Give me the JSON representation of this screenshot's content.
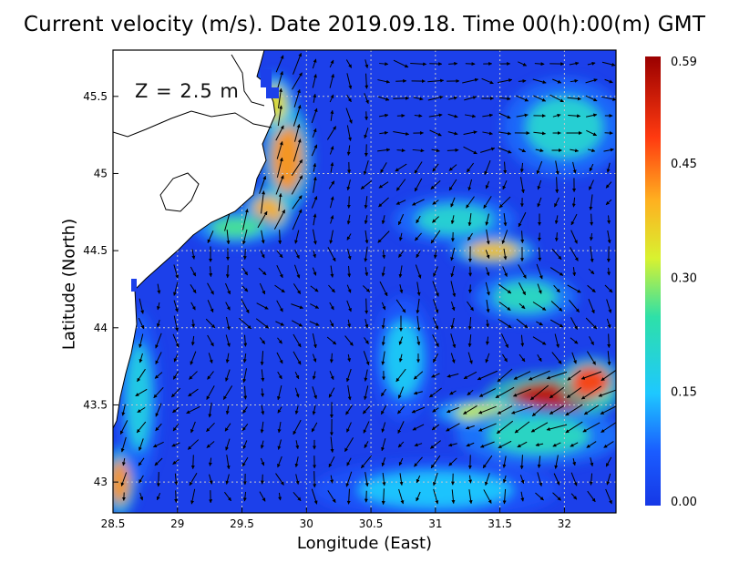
{
  "title": "Current velocity (m/s). Date 2019.09.18. Time 00(h):00(m) GMT",
  "depth_label": "Z = 2.5 m",
  "colors": {
    "low": "#1a3fe8",
    "mid": "#1ec8ff",
    "high": "#a00000",
    "land": "#ffffff",
    "coast": "#000000",
    "arrow": "#000000"
  },
  "chart_data": {
    "type": "heatmap",
    "title": "Current velocity (m/s). Date 2019.09.18. Time 00(h):00(m) GMT",
    "xlabel": "Longitude (East)",
    "ylabel": "Latitude (North)",
    "xlim": [
      28.5,
      32.4
    ],
    "ylim": [
      42.8,
      45.8
    ],
    "xticks": [
      {
        "value": 28.5,
        "label": "28.5"
      },
      {
        "value": 29,
        "label": "29"
      },
      {
        "value": 29.5,
        "label": "29.5"
      },
      {
        "value": 30,
        "label": "30"
      },
      {
        "value": 30.5,
        "label": "30.5"
      },
      {
        "value": 31,
        "label": "31"
      },
      {
        "value": 31.5,
        "label": "31.5"
      },
      {
        "value": 32,
        "label": "32"
      }
    ],
    "yticks": [
      {
        "value": 43,
        "label": "43"
      },
      {
        "value": 43.5,
        "label": "43.5"
      },
      {
        "value": 44,
        "label": "44"
      },
      {
        "value": 44.5,
        "label": "44.5"
      },
      {
        "value": 45,
        "label": "45"
      },
      {
        "value": 45.5,
        "label": "45.5"
      }
    ],
    "grid": true,
    "colorbar": {
      "min": 0.0,
      "max": 0.59,
      "ticks": [
        {
          "value": 0.0,
          "label": "0.00"
        },
        {
          "value": 0.15,
          "label": "0.15"
        },
        {
          "value": 0.3,
          "label": "0.30"
        },
        {
          "value": 0.45,
          "label": "0.45"
        },
        {
          "value": 0.59,
          "label": "0.59"
        }
      ]
    },
    "background_speed": 0.06,
    "hotspots": [
      {
        "lon": 29.85,
        "lat": 45.1,
        "speed": 0.42,
        "rx": 0.12,
        "ry": 0.22
      },
      {
        "lon": 29.7,
        "lat": 44.75,
        "speed": 0.4,
        "rx": 0.12,
        "ry": 0.1
      },
      {
        "lon": 29.75,
        "lat": 45.45,
        "speed": 0.35,
        "rx": 0.1,
        "ry": 0.12
      },
      {
        "lon": 29.45,
        "lat": 44.65,
        "speed": 0.26,
        "rx": 0.2,
        "ry": 0.07
      },
      {
        "lon": 31.45,
        "lat": 44.5,
        "speed": 0.38,
        "rx": 0.2,
        "ry": 0.06
      },
      {
        "lon": 31.15,
        "lat": 44.7,
        "speed": 0.2,
        "rx": 0.3,
        "ry": 0.1
      },
      {
        "lon": 31.7,
        "lat": 44.2,
        "speed": 0.22,
        "rx": 0.25,
        "ry": 0.1
      },
      {
        "lon": 31.9,
        "lat": 43.55,
        "speed": 0.55,
        "rx": 0.32,
        "ry": 0.1
      },
      {
        "lon": 32.2,
        "lat": 43.65,
        "speed": 0.48,
        "rx": 0.15,
        "ry": 0.1
      },
      {
        "lon": 31.4,
        "lat": 43.45,
        "speed": 0.32,
        "rx": 0.25,
        "ry": 0.06
      },
      {
        "lon": 31.8,
        "lat": 43.3,
        "speed": 0.22,
        "rx": 0.4,
        "ry": 0.12
      },
      {
        "lon": 28.55,
        "lat": 43.0,
        "speed": 0.42,
        "rx": 0.08,
        "ry": 0.14
      },
      {
        "lon": 28.7,
        "lat": 43.55,
        "speed": 0.18,
        "rx": 0.1,
        "ry": 0.35
      },
      {
        "lon": 30.75,
        "lat": 43.8,
        "speed": 0.16,
        "rx": 0.15,
        "ry": 0.25
      },
      {
        "lon": 32.0,
        "lat": 45.3,
        "speed": 0.2,
        "rx": 0.3,
        "ry": 0.2
      },
      {
        "lon": 31.0,
        "lat": 42.95,
        "speed": 0.15,
        "rx": 0.6,
        "ry": 0.12
      }
    ]
  }
}
